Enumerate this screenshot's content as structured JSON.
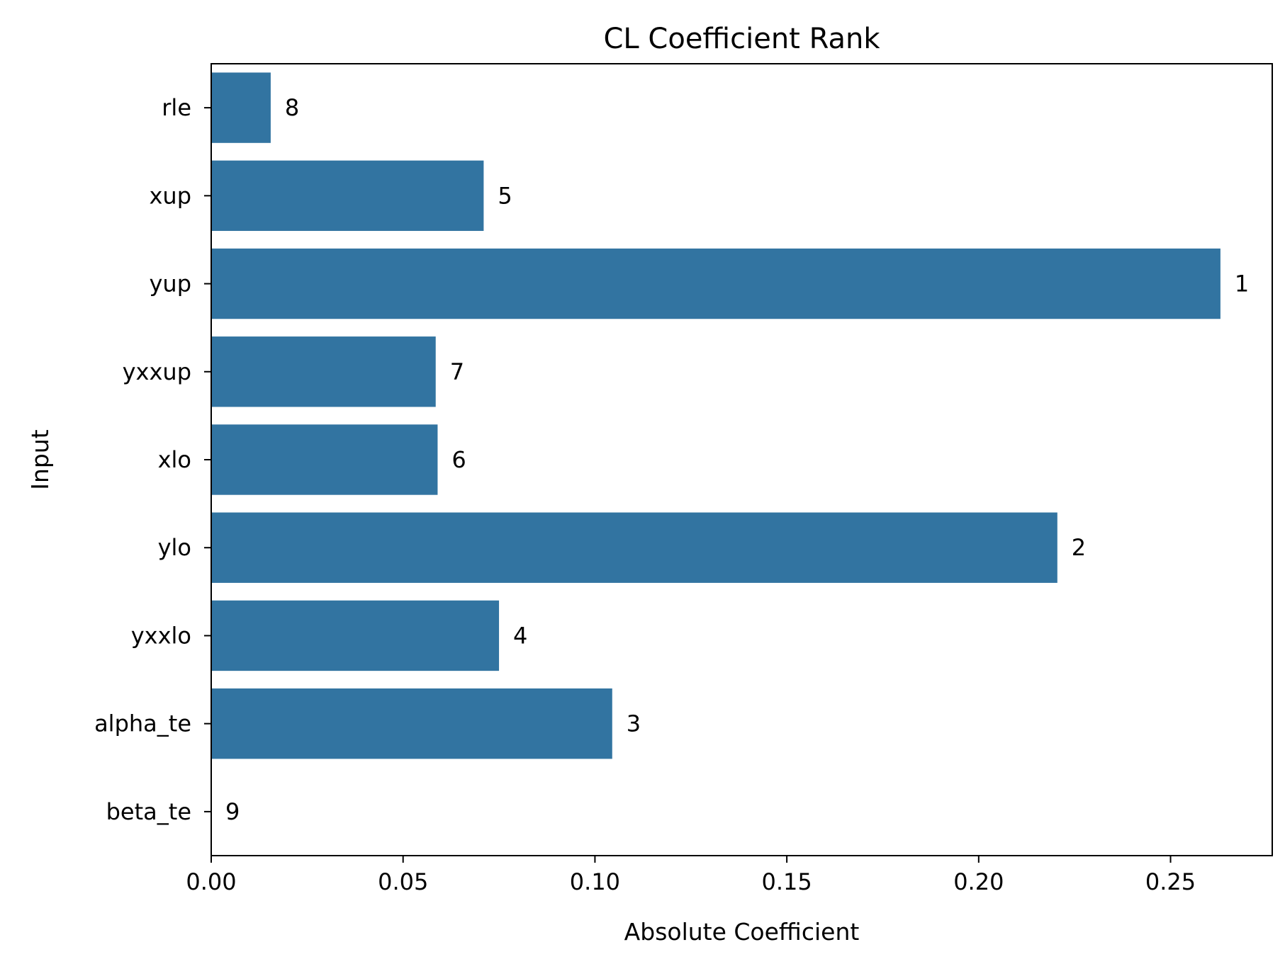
{
  "chart_data": {
    "type": "bar",
    "orientation": "horizontal",
    "title": "CL Coefficient Rank",
    "xlabel": "Absolute Coefficient",
    "ylabel": "Input",
    "categories": [
      "rle",
      "xup",
      "yup",
      "yxxup",
      "xlo",
      "ylo",
      "yxxlo",
      "alpha_te",
      "beta_te"
    ],
    "values": [
      0.0155,
      0.071,
      0.263,
      0.0585,
      0.059,
      0.2205,
      0.075,
      0.1045,
      0.0
    ],
    "bar_labels": [
      "8",
      "5",
      "1",
      "7",
      "6",
      "2",
      "4",
      "3",
      "9"
    ],
    "xlim": [
      0,
      0.2765
    ],
    "xticks": [
      0.0,
      0.05,
      0.1,
      0.15,
      0.2,
      0.25
    ],
    "xtick_labels": [
      "0.00",
      "0.05",
      "0.10",
      "0.15",
      "0.20",
      "0.25"
    ],
    "bar_color": "#3274a1",
    "grid": false,
    "legend": "none"
  }
}
